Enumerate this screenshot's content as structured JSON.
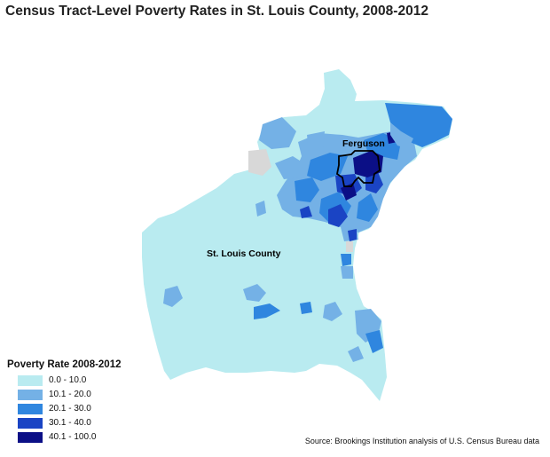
{
  "title": "Census Tract-Level Poverty Rates in St. Louis County, 2008-2012",
  "map": {
    "labels": {
      "ferguson": "Ferguson",
      "county": "St. Louis County"
    }
  },
  "legend": {
    "title": "Poverty Rate 2008-2012",
    "items": [
      {
        "label": "0.0 - 10.0",
        "color": "#b9ebf0"
      },
      {
        "label": "10.1 - 20.0",
        "color": "#74b1e6"
      },
      {
        "label": "20.1 - 30.0",
        "color": "#2f86df"
      },
      {
        "label": "30.1 - 40.0",
        "color": "#1a44c4"
      },
      {
        "label": "40.1 - 100.0",
        "color": "#0b0f86"
      }
    ]
  },
  "no_data_color": "#d8d8d8",
  "source": "Source: Brookings Institution analysis of U.S. Census Bureau data"
}
